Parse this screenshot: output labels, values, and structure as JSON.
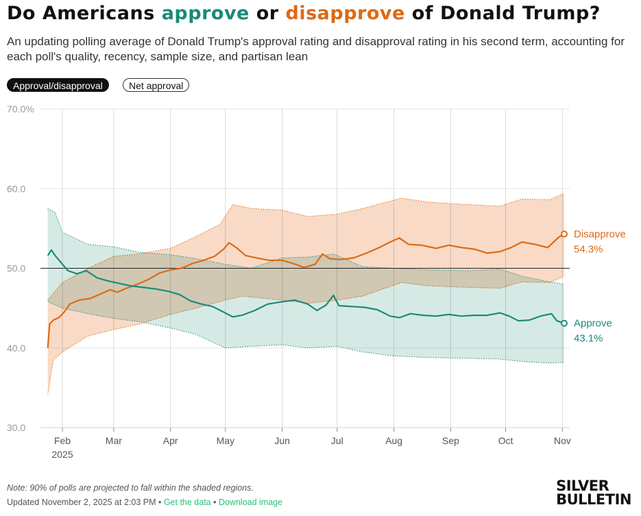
{
  "header": {
    "title_pre": "Do Americans ",
    "title_approve": "approve",
    "title_mid": " or ",
    "title_disapprove": "disapprove",
    "title_post": " of Donald Trump?",
    "subtitle": "An updating polling average of Donald Trump's approval rating and disapproval rating in his second term, accounting for each poll's quality, recency, sample size, and partisan lean"
  },
  "toggles": {
    "active": "Approval/disapproval",
    "inactive": "Net approval"
  },
  "colors": {
    "approve": "#1b8a78",
    "disapprove": "#dd6a12",
    "approve_band": "#cfe6e1",
    "disapprove_band": "#f7d4bd",
    "grid": "#e6e6e6",
    "month_line": "#d8d8d8"
  },
  "chart_data": {
    "type": "line",
    "x_axis": {
      "range": [
        "2025-01-20",
        "2025-11-05"
      ],
      "ticks": [
        {
          "date": "2025-02-01",
          "label": "Feb",
          "sublabel": "2025"
        },
        {
          "date": "2025-03-01",
          "label": "Mar"
        },
        {
          "date": "2025-04-01",
          "label": "Apr"
        },
        {
          "date": "2025-05-01",
          "label": "May"
        },
        {
          "date": "2025-06-01",
          "label": "Jun"
        },
        {
          "date": "2025-07-01",
          "label": "Jul"
        },
        {
          "date": "2025-08-01",
          "label": "Aug"
        },
        {
          "date": "2025-09-01",
          "label": "Sep"
        },
        {
          "date": "2025-10-01",
          "label": "Oct"
        },
        {
          "date": "2025-11-01",
          "label": "Nov"
        }
      ]
    },
    "y_axis": {
      "range": [
        30,
        70
      ],
      "ticks": [
        {
          "value": 30,
          "label": "30.0"
        },
        {
          "value": 40,
          "label": "40.0"
        },
        {
          "value": 50,
          "label": "50.0"
        },
        {
          "value": 60,
          "label": "60.0"
        },
        {
          "value": 70,
          "label": "70.0%"
        }
      ],
      "reference_line": 50
    },
    "series": [
      {
        "name": "Disapprove",
        "end_label": "54.3%",
        "points": [
          [
            "2025-01-24",
            40.0
          ],
          [
            "2025-01-25",
            43.0
          ],
          [
            "2025-01-27",
            43.5
          ],
          [
            "2025-01-30",
            43.8
          ],
          [
            "2025-02-02",
            44.5
          ],
          [
            "2025-02-05",
            45.5
          ],
          [
            "2025-02-10",
            46.0
          ],
          [
            "2025-02-16",
            46.2
          ],
          [
            "2025-02-22",
            46.8
          ],
          [
            "2025-02-27",
            47.3
          ],
          [
            "2025-03-03",
            47.0
          ],
          [
            "2025-03-08",
            47.5
          ],
          [
            "2025-03-14",
            48.0
          ],
          [
            "2025-03-20",
            48.6
          ],
          [
            "2025-03-26",
            49.4
          ],
          [
            "2025-04-01",
            49.8
          ],
          [
            "2025-04-07",
            50.0
          ],
          [
            "2025-04-13",
            50.6
          ],
          [
            "2025-04-19",
            51.0
          ],
          [
            "2025-04-25",
            51.5
          ],
          [
            "2025-04-30",
            52.4
          ],
          [
            "2025-05-03",
            53.2
          ],
          [
            "2025-05-07",
            52.6
          ],
          [
            "2025-05-12",
            51.6
          ],
          [
            "2025-05-18",
            51.3
          ],
          [
            "2025-05-25",
            51.0
          ],
          [
            "2025-06-01",
            51.0
          ],
          [
            "2025-06-07",
            50.6
          ],
          [
            "2025-06-13",
            50.1
          ],
          [
            "2025-06-19",
            50.5
          ],
          [
            "2025-06-23",
            51.8
          ],
          [
            "2025-06-27",
            51.2
          ],
          [
            "2025-07-03",
            51.1
          ],
          [
            "2025-07-10",
            51.3
          ],
          [
            "2025-07-17",
            51.9
          ],
          [
            "2025-07-24",
            52.6
          ],
          [
            "2025-07-30",
            53.3
          ],
          [
            "2025-08-04",
            53.8
          ],
          [
            "2025-08-09",
            53.0
          ],
          [
            "2025-08-16",
            52.9
          ],
          [
            "2025-08-24",
            52.5
          ],
          [
            "2025-08-31",
            52.9
          ],
          [
            "2025-09-07",
            52.6
          ],
          [
            "2025-09-14",
            52.4
          ],
          [
            "2025-09-21",
            51.9
          ],
          [
            "2025-09-28",
            52.1
          ],
          [
            "2025-10-04",
            52.6
          ],
          [
            "2025-10-10",
            53.3
          ],
          [
            "2025-10-17",
            53.0
          ],
          [
            "2025-10-24",
            52.6
          ],
          [
            "2025-10-30",
            53.9
          ],
          [
            "2025-11-02",
            54.3
          ]
        ],
        "band_upper": [
          [
            "2025-01-24",
            46.0
          ],
          [
            "2025-02-01",
            48.2
          ],
          [
            "2025-02-15",
            50.0
          ],
          [
            "2025-03-01",
            51.5
          ],
          [
            "2025-03-15",
            51.8
          ],
          [
            "2025-04-01",
            52.5
          ],
          [
            "2025-04-15",
            54.0
          ],
          [
            "2025-04-28",
            55.5
          ],
          [
            "2025-05-05",
            58.0
          ],
          [
            "2025-05-15",
            57.5
          ],
          [
            "2025-06-01",
            57.3
          ],
          [
            "2025-06-15",
            56.5
          ],
          [
            "2025-07-01",
            56.8
          ],
          [
            "2025-07-15",
            57.5
          ],
          [
            "2025-08-05",
            58.8
          ],
          [
            "2025-08-20",
            58.3
          ],
          [
            "2025-09-10",
            58.0
          ],
          [
            "2025-09-28",
            57.8
          ],
          [
            "2025-10-10",
            58.7
          ],
          [
            "2025-10-25",
            58.6
          ],
          [
            "2025-11-02",
            59.4
          ]
        ],
        "band_lower": [
          [
            "2025-01-24",
            34.2
          ],
          [
            "2025-01-27",
            38.5
          ],
          [
            "2025-02-01",
            39.5
          ],
          [
            "2025-02-15",
            41.5
          ],
          [
            "2025-03-01",
            42.3
          ],
          [
            "2025-03-15",
            43.0
          ],
          [
            "2025-04-01",
            44.2
          ],
          [
            "2025-04-15",
            45.0
          ],
          [
            "2025-05-01",
            46.0
          ],
          [
            "2025-05-10",
            46.5
          ],
          [
            "2025-06-01",
            46.0
          ],
          [
            "2025-06-15",
            45.6
          ],
          [
            "2025-07-01",
            46.0
          ],
          [
            "2025-07-15",
            46.5
          ],
          [
            "2025-08-05",
            48.2
          ],
          [
            "2025-08-20",
            47.8
          ],
          [
            "2025-09-10",
            47.6
          ],
          [
            "2025-09-28",
            47.5
          ],
          [
            "2025-10-10",
            48.3
          ],
          [
            "2025-10-25",
            48.2
          ],
          [
            "2025-11-02",
            49.0
          ]
        ]
      },
      {
        "name": "Approve",
        "end_label": "43.1%",
        "points": [
          [
            "2025-01-24",
            51.6
          ],
          [
            "2025-01-26",
            52.3
          ],
          [
            "2025-01-28",
            51.6
          ],
          [
            "2025-02-01",
            50.5
          ],
          [
            "2025-02-04",
            49.7
          ],
          [
            "2025-02-09",
            49.3
          ],
          [
            "2025-02-14",
            49.7
          ],
          [
            "2025-02-20",
            48.8
          ],
          [
            "2025-02-26",
            48.4
          ],
          [
            "2025-03-04",
            48.1
          ],
          [
            "2025-03-10",
            47.8
          ],
          [
            "2025-03-17",
            47.6
          ],
          [
            "2025-03-24",
            47.4
          ],
          [
            "2025-03-31",
            47.1
          ],
          [
            "2025-04-06",
            46.7
          ],
          [
            "2025-04-12",
            45.9
          ],
          [
            "2025-04-18",
            45.5
          ],
          [
            "2025-04-24",
            45.2
          ],
          [
            "2025-04-30",
            44.5
          ],
          [
            "2025-05-05",
            43.9
          ],
          [
            "2025-05-10",
            44.1
          ],
          [
            "2025-05-17",
            44.7
          ],
          [
            "2025-05-24",
            45.5
          ],
          [
            "2025-06-01",
            45.8
          ],
          [
            "2025-06-08",
            46.0
          ],
          [
            "2025-06-15",
            45.5
          ],
          [
            "2025-06-20",
            44.7
          ],
          [
            "2025-06-25",
            45.4
          ],
          [
            "2025-06-29",
            46.6
          ],
          [
            "2025-07-02",
            45.3
          ],
          [
            "2025-07-09",
            45.2
          ],
          [
            "2025-07-16",
            45.1
          ],
          [
            "2025-07-23",
            44.8
          ],
          [
            "2025-07-30",
            44.0
          ],
          [
            "2025-08-04",
            43.8
          ],
          [
            "2025-08-10",
            44.3
          ],
          [
            "2025-08-17",
            44.1
          ],
          [
            "2025-08-24",
            44.0
          ],
          [
            "2025-08-31",
            44.2
          ],
          [
            "2025-09-07",
            44.0
          ],
          [
            "2025-09-14",
            44.1
          ],
          [
            "2025-09-21",
            44.1
          ],
          [
            "2025-09-28",
            44.4
          ],
          [
            "2025-10-03",
            44.0
          ],
          [
            "2025-10-08",
            43.4
          ],
          [
            "2025-10-14",
            43.5
          ],
          [
            "2025-10-20",
            44.0
          ],
          [
            "2025-10-26",
            44.3
          ],
          [
            "2025-10-29",
            43.4
          ],
          [
            "2025-11-02",
            43.1
          ]
        ],
        "band_upper": [
          [
            "2025-01-24",
            57.5
          ],
          [
            "2025-01-28",
            57.0
          ],
          [
            "2025-02-01",
            54.5
          ],
          [
            "2025-02-15",
            53.0
          ],
          [
            "2025-03-01",
            52.7
          ],
          [
            "2025-03-15",
            52.0
          ],
          [
            "2025-04-01",
            51.7
          ],
          [
            "2025-04-15",
            51.2
          ],
          [
            "2025-05-01",
            50.5
          ],
          [
            "2025-05-15",
            50.0
          ],
          [
            "2025-06-01",
            51.3
          ],
          [
            "2025-06-15",
            51.4
          ],
          [
            "2025-06-29",
            51.8
          ],
          [
            "2025-07-15",
            50.2
          ],
          [
            "2025-08-01",
            50.0
          ],
          [
            "2025-08-20",
            49.8
          ],
          [
            "2025-09-10",
            49.7
          ],
          [
            "2025-09-28",
            49.9
          ],
          [
            "2025-10-10",
            49.0
          ],
          [
            "2025-10-25",
            48.3
          ],
          [
            "2025-11-02",
            48.0
          ]
        ],
        "band_lower": [
          [
            "2025-01-24",
            45.8
          ],
          [
            "2025-02-01",
            45.0
          ],
          [
            "2025-02-15",
            44.3
          ],
          [
            "2025-03-01",
            43.7
          ],
          [
            "2025-03-15",
            43.3
          ],
          [
            "2025-04-01",
            42.5
          ],
          [
            "2025-04-15",
            41.7
          ],
          [
            "2025-05-01",
            40.0
          ],
          [
            "2025-05-15",
            40.2
          ],
          [
            "2025-06-01",
            40.4
          ],
          [
            "2025-06-15",
            40.0
          ],
          [
            "2025-07-01",
            40.2
          ],
          [
            "2025-07-15",
            39.5
          ],
          [
            "2025-08-01",
            39.0
          ],
          [
            "2025-08-20",
            38.8
          ],
          [
            "2025-09-10",
            38.7
          ],
          [
            "2025-09-28",
            38.6
          ],
          [
            "2025-10-10",
            38.3
          ],
          [
            "2025-10-25",
            38.1
          ],
          [
            "2025-11-02",
            38.2
          ]
        ]
      }
    ]
  },
  "footer": {
    "note": "Note: 90% of polls are projected to fall within the shaded regions.",
    "updated": "Updated November 2, 2025 at 2:03 PM",
    "sep1": " • ",
    "get_data": "Get the data",
    "sep2": " • ",
    "download": "Download image",
    "logo_line1": "SILVER",
    "logo_line2": "BULLETIN"
  }
}
